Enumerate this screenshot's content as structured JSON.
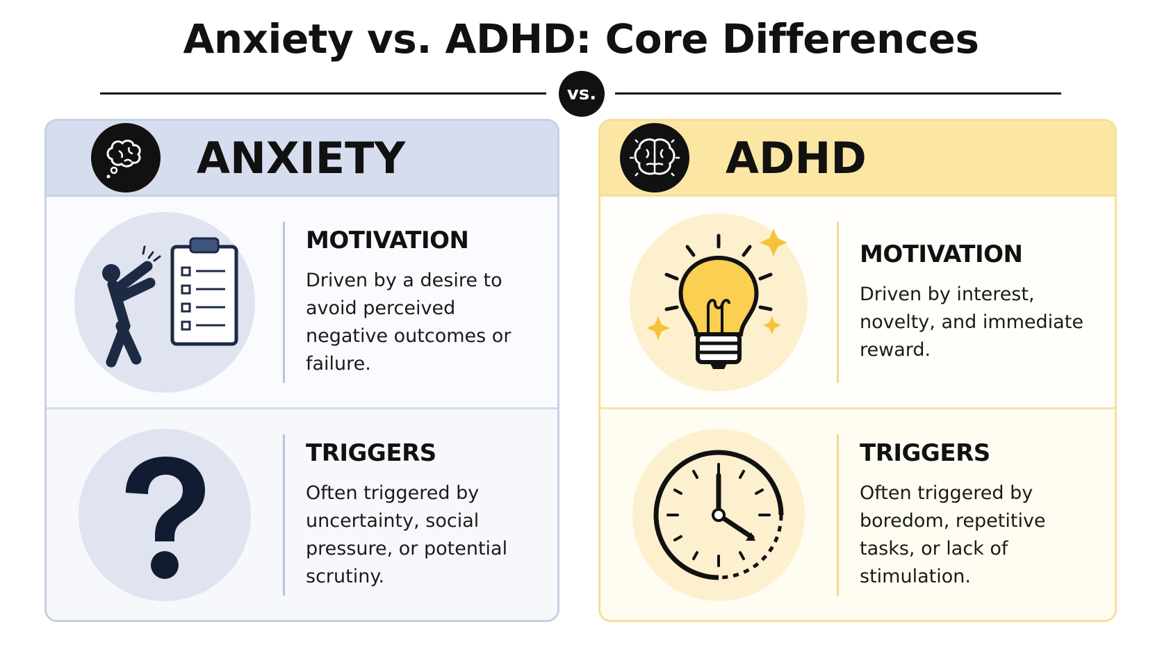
{
  "header": {
    "title": "Anxiety vs. ADHD: Core Differences",
    "divider_label": "vs."
  },
  "columns": [
    {
      "title": "ANXIETY",
      "sections": [
        {
          "heading": "MOTIVATION",
          "text": "Driven by a desire to avoid perceived negative outcomes or failure."
        },
        {
          "heading": "TRIGGERS",
          "text": "Often triggered by uncertainty, social pressure, or potential scrutiny."
        }
      ]
    },
    {
      "title": "ADHD",
      "sections": [
        {
          "heading": "MOTIVATION",
          "text": "Driven by interest, novelty, and immediate reward."
        },
        {
          "heading": "TRIGGERS",
          "text": "Often triggered by boredom, repetitive tasks, or lack of stimulation."
        }
      ]
    }
  ]
}
